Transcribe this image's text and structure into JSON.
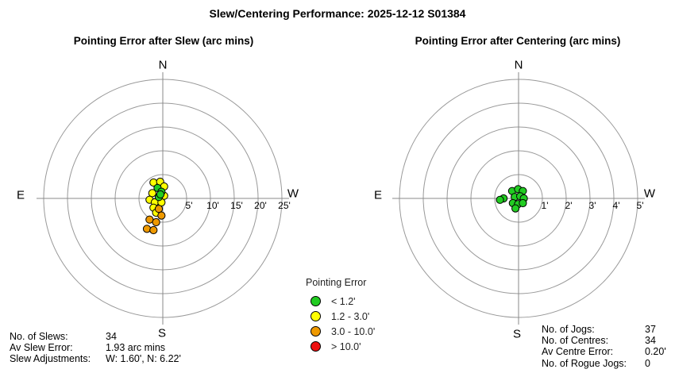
{
  "page_title": "Slew/Centering Performance: 2025-12-12 S01384",
  "legend": {
    "title": "Pointing Error",
    "items": [
      {
        "key": "green",
        "label": "< 1.2'",
        "color": "#22cc22"
      },
      {
        "key": "yellow",
        "label": "1.2 - 3.0'",
        "color": "#ffff00"
      },
      {
        "key": "orange",
        "label": "3.0 - 10.0'",
        "color": "#ee9900"
      },
      {
        "key": "red",
        "label": "> 10.0'",
        "color": "#ee1111"
      }
    ]
  },
  "slew_stats": {
    "rows": [
      {
        "label": "No. of Slews:",
        "value": "34"
      },
      {
        "label": "Av Slew Error:",
        "value": "1.93 arc mins"
      },
      {
        "label": "Slew Adjustments:",
        "value": "W: 1.60', N: 6.22'"
      }
    ]
  },
  "centering_stats": {
    "rows": [
      {
        "label": "No. of Jogs:",
        "value": "37"
      },
      {
        "label": "No. of Centres:",
        "value": "34"
      },
      {
        "label": "Av Centre Error:",
        "value": "0.20'"
      },
      {
        "label": "No. of Rogue Jogs:",
        "value": "0"
      }
    ]
  },
  "chart_data": [
    {
      "type": "scatter",
      "polar": true,
      "title": "Pointing Error after Slew (arc mins)",
      "units": "arc mins",
      "rings": [
        5,
        10,
        15,
        20,
        25
      ],
      "ring_labels": [
        "5'",
        "10'",
        "15'",
        "20'",
        "25'"
      ],
      "rlim": [
        0,
        25
      ],
      "grid": true,
      "compass": {
        "north": "N",
        "east": "E",
        "south": "S",
        "west": "W"
      },
      "points": [
        {
          "e": 1.95,
          "n": 3.33,
          "cat": "yellow"
        },
        {
          "e": 0.55,
          "n": 3.5,
          "cat": "yellow"
        },
        {
          "e": -0.28,
          "n": 2.5,
          "cat": "yellow"
        },
        {
          "e": 2.2,
          "n": 1.1,
          "cat": "yellow"
        },
        {
          "e": -0.28,
          "n": 0.55,
          "cat": "yellow"
        },
        {
          "e": 2.78,
          "n": -0.28,
          "cat": "yellow"
        },
        {
          "e": 1.67,
          "n": -0.83,
          "cat": "yellow"
        },
        {
          "e": 0.28,
          "n": -0.83,
          "cat": "yellow"
        },
        {
          "e": 1.95,
          "n": -1.95,
          "cat": "yellow"
        },
        {
          "e": 1.4,
          "n": -3.0,
          "cat": "yellow"
        },
        {
          "e": 0.83,
          "n": -2.2,
          "cat": "orange"
        },
        {
          "e": 0.28,
          "n": -3.6,
          "cat": "orange"
        },
        {
          "e": 2.78,
          "n": -4.45,
          "cat": "orange"
        },
        {
          "e": 1.4,
          "n": -5.0,
          "cat": "orange"
        },
        {
          "e": 3.33,
          "n": -6.4,
          "cat": "orange"
        },
        {
          "e": 1.95,
          "n": -6.67,
          "cat": "orange"
        },
        {
          "e": 1.1,
          "n": 2.2,
          "cat": "green"
        },
        {
          "e": 0.28,
          "n": 1.4,
          "cat": "green"
        },
        {
          "e": 0.83,
          "n": 0.28,
          "cat": "green"
        },
        {
          "e": 0.5,
          "n": 0.83,
          "cat": "green"
        }
      ]
    },
    {
      "type": "scatter",
      "polar": true,
      "title": "Pointing Error after Centering (arc mins)",
      "units": "arc mins",
      "rings": [
        1,
        2,
        3,
        4,
        5
      ],
      "ring_labels": [
        "1'",
        "2'",
        "3'",
        "4'",
        "5'"
      ],
      "rlim": [
        0,
        5
      ],
      "grid": true,
      "compass": {
        "north": "N",
        "east": "E",
        "south": "S",
        "west": "W"
      },
      "points": [
        {
          "e": 0.63,
          "n": 0.0,
          "cat": "green"
        },
        {
          "e": 0.78,
          "n": -0.06,
          "cat": "green"
        },
        {
          "e": 0.27,
          "n": 0.31,
          "cat": "green"
        },
        {
          "e": 0.02,
          "n": 0.39,
          "cat": "green"
        },
        {
          "e": -0.18,
          "n": 0.31,
          "cat": "green"
        },
        {
          "e": 0.16,
          "n": 0.06,
          "cat": "green"
        },
        {
          "e": -0.07,
          "n": 0.09,
          "cat": "green"
        },
        {
          "e": -0.22,
          "n": 0.0,
          "cat": "green"
        },
        {
          "e": 0.24,
          "n": -0.2,
          "cat": "green"
        },
        {
          "e": 0.02,
          "n": -0.24,
          "cat": "green"
        },
        {
          "e": -0.18,
          "n": -0.2,
          "cat": "green"
        },
        {
          "e": 0.13,
          "n": -0.42,
          "cat": "green"
        }
      ]
    }
  ]
}
